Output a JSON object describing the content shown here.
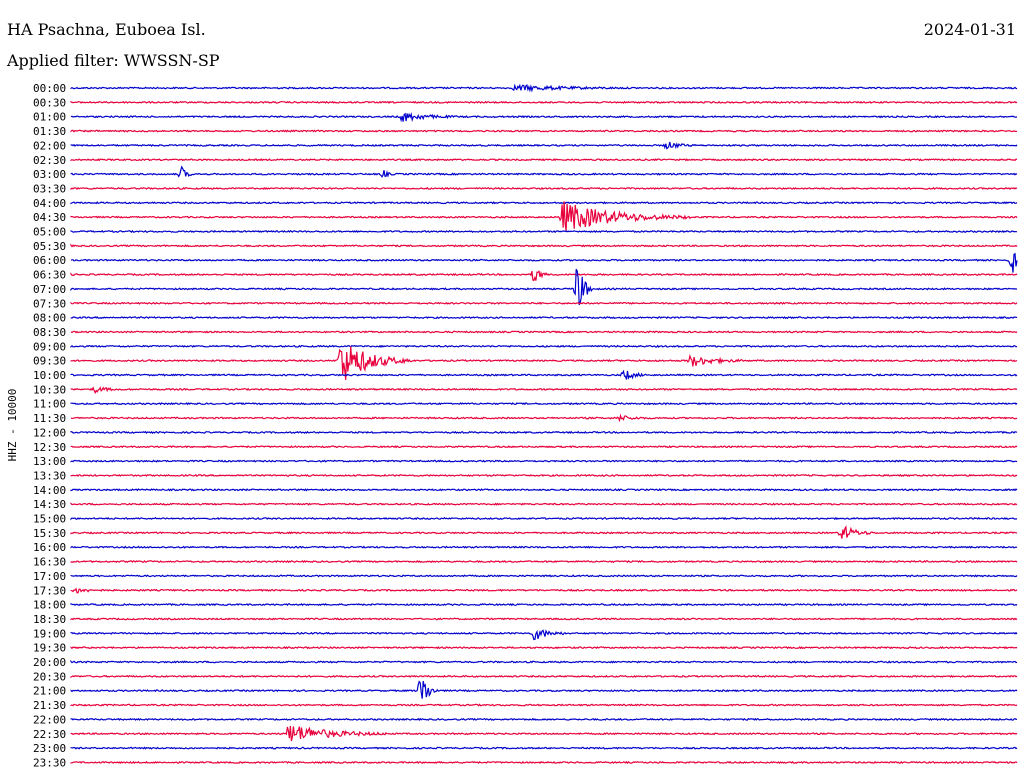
{
  "header": {
    "station": "HA Psachna, Euboea Isl.",
    "date": "2024-01-31",
    "filter": "Applied filter: WWSSN-SP"
  },
  "chart_data": {
    "type": "line",
    "title": "HA Psachna, Euboea Isl.",
    "subtitle": "Applied filter: WWSSN-SP",
    "ylabel": "HHZ - 10000",
    "colors": [
      "#0000cc",
      "#e8003c"
    ],
    "row_labels": [
      "00:00",
      "00:30",
      "01:00",
      "01:30",
      "02:00",
      "02:30",
      "03:00",
      "03:30",
      "04:00",
      "04:30",
      "05:00",
      "05:30",
      "06:00",
      "06:30",
      "07:00",
      "07:30",
      "08:00",
      "08:30",
      "09:00",
      "09:30",
      "10:00",
      "10:30",
      "11:00",
      "11:30",
      "12:00",
      "12:30",
      "13:00",
      "13:30",
      "14:00",
      "14:30",
      "15:00",
      "15:30",
      "16:00",
      "16:30",
      "17:00",
      "17:30",
      "18:00",
      "18:30",
      "19:00",
      "19:30",
      "20:00",
      "20:30",
      "21:00",
      "21:30",
      "22:00",
      "22:30",
      "23:00",
      "23:30"
    ],
    "events": [
      {
        "row": 0,
        "t": 0.47,
        "amp": 3,
        "dur": 0.04
      },
      {
        "row": 2,
        "t": 0.35,
        "amp": 5,
        "dur": 0.02
      },
      {
        "row": 4,
        "t": 0.63,
        "amp": 4,
        "dur": 0.01
      },
      {
        "row": 6,
        "t": 0.117,
        "amp": 8,
        "dur": 0.004
      },
      {
        "row": 6,
        "t": 0.33,
        "amp": 4,
        "dur": 0.004
      },
      {
        "row": 9,
        "t": 0.52,
        "amp": 16,
        "dur": 0.045
      },
      {
        "row": 12,
        "t": 0.995,
        "amp": 14,
        "dur": 0.005
      },
      {
        "row": 13,
        "t": 0.49,
        "amp": 10,
        "dur": 0.005
      },
      {
        "row": 14,
        "t": 0.535,
        "amp": 30,
        "dur": 0.006
      },
      {
        "row": 19,
        "t": 0.285,
        "amp": 24,
        "dur": 0.025
      },
      {
        "row": 19,
        "t": 0.655,
        "amp": 6,
        "dur": 0.02
      },
      {
        "row": 20,
        "t": 0.585,
        "amp": 6,
        "dur": 0.008
      },
      {
        "row": 21,
        "t": 0.025,
        "amp": 3,
        "dur": 0.01
      },
      {
        "row": 23,
        "t": 0.58,
        "amp": 3,
        "dur": 0.01
      },
      {
        "row": 31,
        "t": 0.815,
        "amp": 8,
        "dur": 0.012
      },
      {
        "row": 35,
        "t": 0.005,
        "amp": 3,
        "dur": 0.01
      },
      {
        "row": 38,
        "t": 0.49,
        "amp": 7,
        "dur": 0.012
      },
      {
        "row": 42,
        "t": 0.37,
        "amp": 22,
        "dur": 0.006
      },
      {
        "row": 45,
        "t": 0.23,
        "amp": 10,
        "dur": 0.035
      }
    ]
  }
}
